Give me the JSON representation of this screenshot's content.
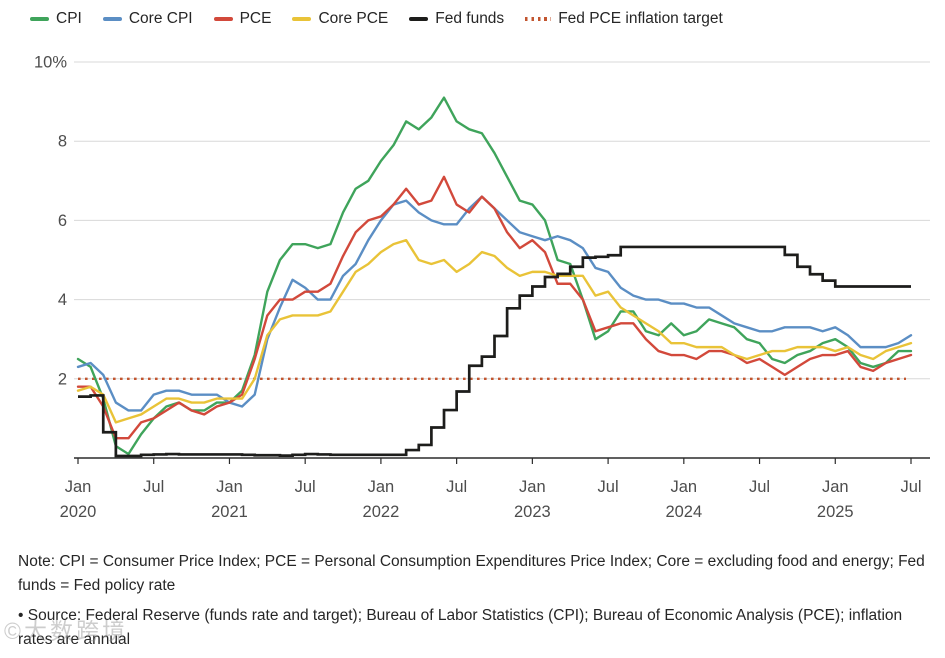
{
  "legend": {
    "items": [
      {
        "id": "cpi",
        "label": "CPI",
        "color": "#3fa45b",
        "style": "solid"
      },
      {
        "id": "core-cpi",
        "label": "Core CPI",
        "color": "#5b8ec4",
        "style": "solid"
      },
      {
        "id": "pce",
        "label": "PCE",
        "color": "#d2493b",
        "style": "solid"
      },
      {
        "id": "core-pce",
        "label": "Core PCE",
        "color": "#e9c338",
        "style": "solid"
      },
      {
        "id": "fed-funds",
        "label": "Fed funds",
        "color": "#1d1d1b",
        "style": "solid"
      },
      {
        "id": "fed-pce-inflation-target",
        "label": "Fed PCE inflation target",
        "color": "#c2552f",
        "style": "dotted"
      }
    ]
  },
  "chart_data": {
    "type": "line",
    "title": "",
    "grid": true,
    "legend_position": "top",
    "months": [
      "2020-01",
      "2020-02",
      "2020-03",
      "2020-04",
      "2020-05",
      "2020-06",
      "2020-07",
      "2020-08",
      "2020-09",
      "2020-10",
      "2020-11",
      "2020-12",
      "2021-01",
      "2021-02",
      "2021-03",
      "2021-04",
      "2021-05",
      "2021-06",
      "2021-07",
      "2021-08",
      "2021-09",
      "2021-10",
      "2021-11",
      "2021-12",
      "2022-01",
      "2022-02",
      "2022-03",
      "2022-04",
      "2022-05",
      "2022-06",
      "2022-07",
      "2022-08",
      "2022-09",
      "2022-10",
      "2022-11",
      "2022-12",
      "2023-01",
      "2023-02",
      "2023-03",
      "2023-04",
      "2023-05",
      "2023-06",
      "2023-07",
      "2023-08",
      "2023-09",
      "2023-10",
      "2023-11",
      "2023-12",
      "2024-01",
      "2024-02",
      "2024-03",
      "2024-04",
      "2024-05",
      "2024-06",
      "2024-07",
      "2024-08",
      "2024-09",
      "2024-10",
      "2024-11",
      "2024-12",
      "2025-01",
      "2025-02",
      "2025-03",
      "2025-04",
      "2025-05",
      "2025-06",
      "2025-07"
    ],
    "x_axis": {
      "ticks": [
        {
          "index": 0,
          "label": "Jan",
          "year": "2020"
        },
        {
          "index": 6,
          "label": "Jul"
        },
        {
          "index": 12,
          "label": "Jan",
          "year": "2021"
        },
        {
          "index": 18,
          "label": "Jul"
        },
        {
          "index": 24,
          "label": "Jan",
          "year": "2022"
        },
        {
          "index": 30,
          "label": "Jul"
        },
        {
          "index": 36,
          "label": "Jan",
          "year": "2023"
        },
        {
          "index": 42,
          "label": "Jul"
        },
        {
          "index": 48,
          "label": "Jan",
          "year": "2024"
        },
        {
          "index": 54,
          "label": "Jul"
        },
        {
          "index": 60,
          "label": "Jan",
          "year": "2025"
        },
        {
          "index": 66,
          "label": "Jul"
        }
      ]
    },
    "y_axis": {
      "min": 0,
      "max": 10,
      "ticks": [
        {
          "value": 10,
          "label": "10%"
        },
        {
          "value": 8,
          "label": "8"
        },
        {
          "value": 6,
          "label": "6"
        },
        {
          "value": 4,
          "label": "4"
        },
        {
          "value": 2,
          "label": "2"
        }
      ]
    },
    "target": {
      "name": "Fed PCE inflation target",
      "value": 2.0,
      "color": "#c2552f",
      "style": "dotted"
    },
    "series": [
      {
        "name": "CPI",
        "id": "cpi",
        "color": "#3fa45b",
        "line_type": "line",
        "values": [
          2.5,
          2.3,
          1.5,
          0.3,
          0.1,
          0.6,
          1.0,
          1.3,
          1.4,
          1.2,
          1.2,
          1.4,
          1.4,
          1.7,
          2.6,
          4.2,
          5.0,
          5.4,
          5.4,
          5.3,
          5.4,
          6.2,
          6.8,
          7.0,
          7.5,
          7.9,
          8.5,
          8.3,
          8.6,
          9.1,
          8.5,
          8.3,
          8.2,
          7.7,
          7.1,
          6.5,
          6.4,
          6.0,
          5.0,
          4.9,
          4.0,
          3.0,
          3.2,
          3.7,
          3.7,
          3.2,
          3.1,
          3.4,
          3.1,
          3.2,
          3.5,
          3.4,
          3.3,
          3.0,
          2.9,
          2.5,
          2.4,
          2.6,
          2.7,
          2.9,
          3.0,
          2.8,
          2.4,
          2.3,
          2.4,
          2.7,
          2.7
        ]
      },
      {
        "name": "Core CPI",
        "id": "core-cpi",
        "color": "#5b8ec4",
        "line_type": "line",
        "values": [
          2.3,
          2.4,
          2.1,
          1.4,
          1.2,
          1.2,
          1.6,
          1.7,
          1.7,
          1.6,
          1.6,
          1.6,
          1.4,
          1.3,
          1.6,
          3.0,
          3.8,
          4.5,
          4.3,
          4.0,
          4.0,
          4.6,
          4.9,
          5.5,
          6.0,
          6.4,
          6.5,
          6.2,
          6.0,
          5.9,
          5.9,
          6.3,
          6.6,
          6.3,
          6.0,
          5.7,
          5.6,
          5.5,
          5.6,
          5.5,
          5.3,
          4.8,
          4.7,
          4.3,
          4.1,
          4.0,
          4.0,
          3.9,
          3.9,
          3.8,
          3.8,
          3.6,
          3.4,
          3.3,
          3.2,
          3.2,
          3.3,
          3.3,
          3.3,
          3.2,
          3.3,
          3.1,
          2.8,
          2.8,
          2.8,
          2.9,
          3.1
        ]
      },
      {
        "name": "PCE",
        "id": "pce",
        "color": "#d2493b",
        "line_type": "line",
        "values": [
          1.8,
          1.8,
          1.3,
          0.5,
          0.5,
          0.9,
          1.0,
          1.2,
          1.4,
          1.2,
          1.1,
          1.3,
          1.4,
          1.6,
          2.5,
          3.6,
          4.0,
          4.0,
          4.2,
          4.2,
          4.4,
          5.1,
          5.7,
          6.0,
          6.1,
          6.4,
          6.8,
          6.4,
          6.5,
          7.1,
          6.4,
          6.2,
          6.6,
          6.3,
          5.7,
          5.3,
          5.5,
          5.2,
          4.4,
          4.4,
          4.0,
          3.2,
          3.3,
          3.4,
          3.4,
          3.0,
          2.7,
          2.6,
          2.6,
          2.5,
          2.7,
          2.7,
          2.6,
          2.4,
          2.5,
          2.3,
          2.1,
          2.3,
          2.5,
          2.6,
          2.6,
          2.7,
          2.3,
          2.2,
          2.4,
          2.5,
          2.6
        ]
      },
      {
        "name": "Core PCE",
        "id": "core-pce",
        "color": "#e9c338",
        "line_type": "line",
        "values": [
          1.7,
          1.8,
          1.6,
          0.9,
          1.0,
          1.1,
          1.3,
          1.5,
          1.5,
          1.4,
          1.4,
          1.5,
          1.5,
          1.5,
          2.0,
          3.1,
          3.5,
          3.6,
          3.6,
          3.6,
          3.7,
          4.2,
          4.7,
          4.9,
          5.2,
          5.4,
          5.5,
          5.0,
          4.9,
          5.0,
          4.7,
          4.9,
          5.2,
          5.1,
          4.8,
          4.6,
          4.7,
          4.7,
          4.6,
          4.6,
          4.6,
          4.1,
          4.2,
          3.8,
          3.6,
          3.4,
          3.2,
          2.9,
          2.9,
          2.8,
          2.8,
          2.8,
          2.6,
          2.5,
          2.6,
          2.7,
          2.7,
          2.8,
          2.8,
          2.8,
          2.7,
          2.8,
          2.6,
          2.5,
          2.7,
          2.8,
          2.9
        ]
      },
      {
        "name": "Fed funds",
        "id": "fed-funds",
        "color": "#1d1d1b",
        "line_type": "step",
        "values": [
          1.55,
          1.58,
          0.65,
          0.05,
          0.05,
          0.08,
          0.09,
          0.1,
          0.09,
          0.09,
          0.09,
          0.09,
          0.09,
          0.08,
          0.07,
          0.07,
          0.06,
          0.08,
          0.1,
          0.09,
          0.08,
          0.08,
          0.08,
          0.08,
          0.08,
          0.08,
          0.2,
          0.33,
          0.77,
          1.21,
          1.68,
          2.33,
          2.56,
          3.08,
          3.78,
          4.1,
          4.33,
          4.57,
          4.65,
          4.83,
          5.06,
          5.08,
          5.12,
          5.33,
          5.33,
          5.33,
          5.33,
          5.33,
          5.33,
          5.33,
          5.33,
          5.33,
          5.33,
          5.33,
          5.33,
          5.33,
          5.13,
          4.83,
          4.64,
          4.48,
          4.33,
          4.33,
          4.33,
          4.33,
          4.33,
          4.33,
          4.33
        ]
      }
    ],
    "style": {
      "grid_color": "#d8d8d8",
      "axis_line_color": "#2b2b2b",
      "tick_text_color": "#4d4d4d"
    }
  },
  "notes": {
    "definition": "Note: CPI = Consumer Price Index; PCE = Personal Consumption Expenditures Price Index; Core = excluding food and energy; Fed funds = Fed policy rate",
    "source": "• Source: Federal Reserve (funds rate and target); Bureau of Labor Statistics (CPI); Bureau of Economic Analysis (PCE); inflation rates are annual"
  },
  "watermark": "©大数跨境"
}
